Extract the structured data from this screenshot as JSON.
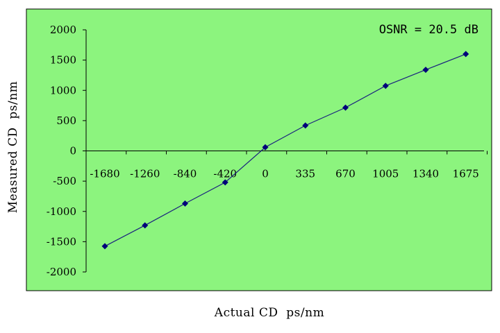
{
  "chart_data": {
    "type": "line",
    "title": "",
    "annotation": "OSNR = 20.5 dB",
    "xlabel": "Actual CD  ps/nm",
    "ylabel": "Measured CD  ps/nm",
    "categories": [
      "-1680",
      "-1260",
      "-840",
      "-420",
      "0",
      "335",
      "670",
      "1005",
      "1340",
      "1675"
    ],
    "series": [
      {
        "values": [
          -1575,
          -1230,
          -870,
          -520,
          60,
          420,
          715,
          1075,
          1340,
          1600
        ]
      }
    ],
    "ylim": [
      -2000,
      2000
    ],
    "yticks": [
      2000,
      1500,
      1000,
      500,
      0,
      -500,
      -1000,
      -1500,
      -2000
    ],
    "grid": false,
    "legend": "none",
    "colors": {
      "plot_area": "#8cf47e",
      "line": "#1a237e",
      "marker": "#00007a",
      "frame": "#000000"
    }
  }
}
